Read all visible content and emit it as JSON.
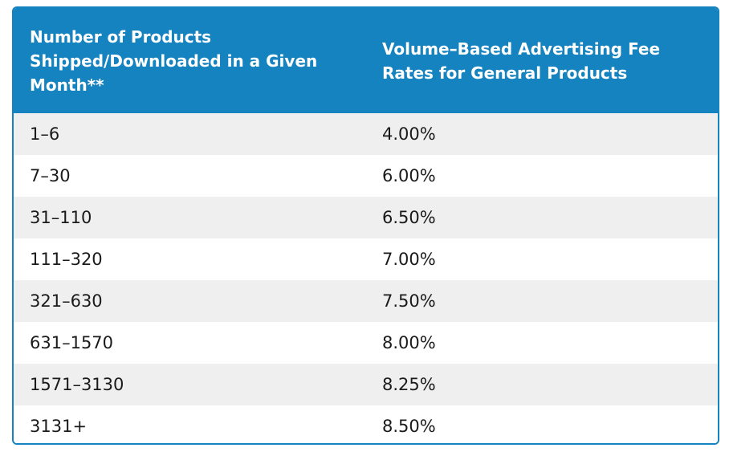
{
  "table": {
    "headers": [
      "Number of Products Shipped/Downloaded in a Given Month**",
      "Volume–Based Advertising Fee Rates for General Products"
    ],
    "rows": [
      [
        "1–6",
        "4.00%"
      ],
      [
        "7–30",
        "6.00%"
      ],
      [
        "31–110",
        "6.50%"
      ],
      [
        "111–320",
        "7.00%"
      ],
      [
        "321–630",
        "7.50%"
      ],
      [
        "631–1570",
        "8.00%"
      ],
      [
        "1571–3130",
        "8.25%"
      ],
      [
        "3131+",
        "8.50%"
      ]
    ]
  },
  "colors": {
    "header_bg": "#1583bf",
    "header_text": "#ffffff",
    "row_alt_bg": "#efefef",
    "border": "#1583bf"
  }
}
